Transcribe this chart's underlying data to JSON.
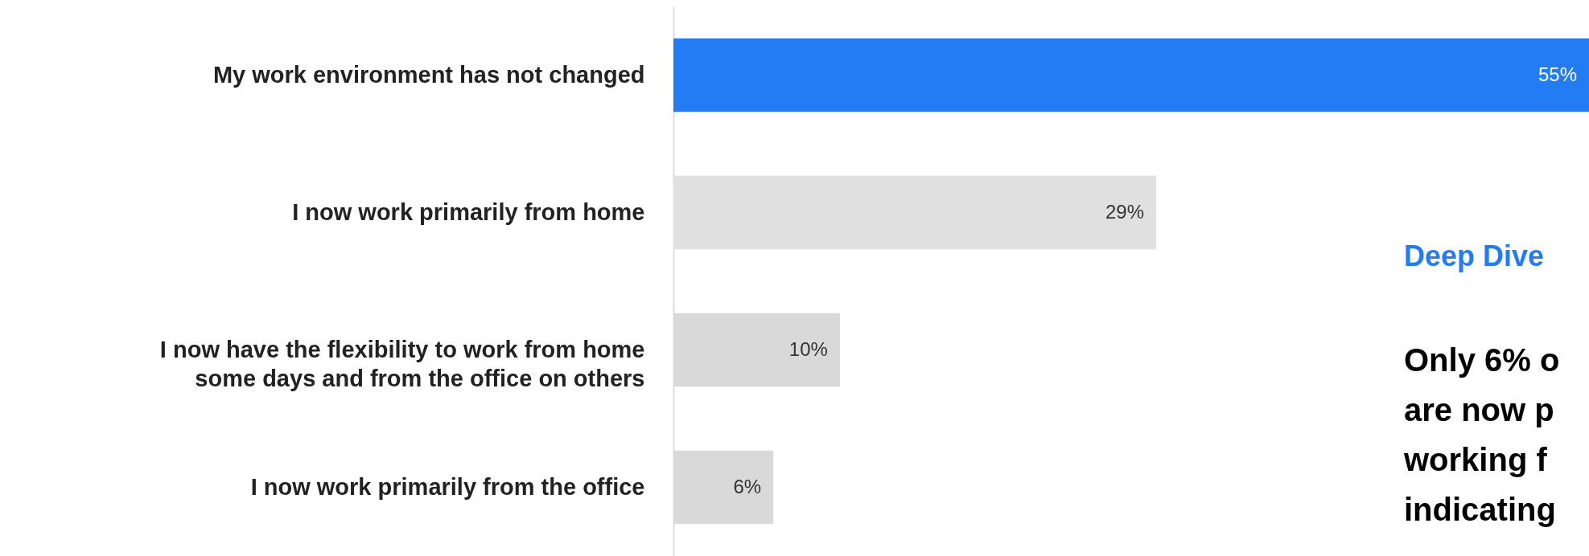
{
  "chart_data": {
    "type": "bar",
    "orientation": "horizontal",
    "tick_labels": "y",
    "categories": [
      "My work environment has not changed",
      "I now work primarily from home",
      "I now have the flexibility to work from home\nsome days and from the office on others",
      "I now work primarily from the office"
    ],
    "values": [
      55,
      29,
      10,
      6
    ],
    "value_labels": [
      "55%",
      "29%",
      "10%",
      "6%"
    ],
    "colors": [
      "#247cf5",
      "#dfe0df",
      "#d9d9d9",
      "#d9d9d9"
    ],
    "annotations": [
      "Deep Dive",
      "Only 6% o",
      "are now p",
      "working f",
      "indicating"
    ]
  }
}
